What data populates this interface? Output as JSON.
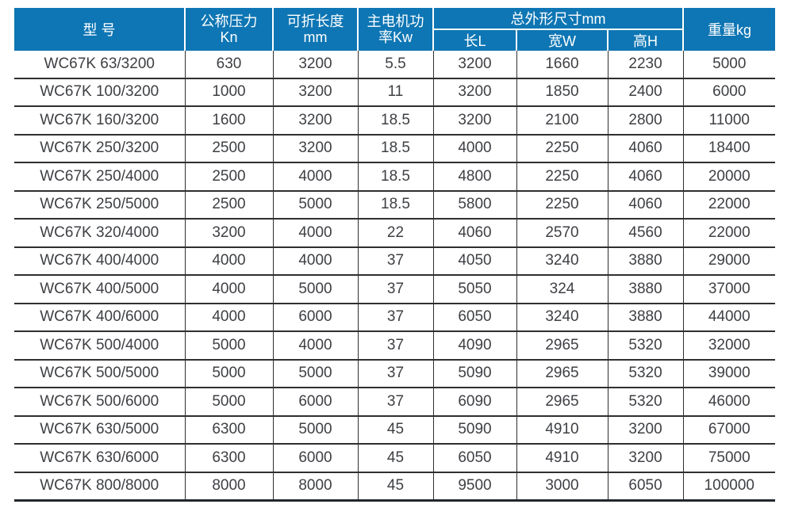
{
  "colors": {
    "header_bg": "#0e76b4",
    "header_text": "#ffffff",
    "body_text": "#3e4044",
    "grid_line": "#2f2f2f",
    "bottom_rule": "#22272c"
  },
  "table": {
    "header": {
      "model": "型 号",
      "pressure": [
        "公称压力",
        "Kn"
      ],
      "fold_length": [
        "可折长度",
        "mm"
      ],
      "motor_power": [
        "主电机功",
        "率Kw"
      ],
      "dimensions_group": "总外形尺寸mm",
      "dim_l": "长L",
      "dim_w": "宽W",
      "dim_h": "高H",
      "weight": "重量kg"
    },
    "rows": [
      [
        "WC67K 63/3200",
        "630",
        "3200",
        "5.5",
        "3200",
        "1660",
        "2230",
        "5000"
      ],
      [
        "WC67K 100/3200",
        "1000",
        "3200",
        "11",
        "3200",
        "1850",
        "2400",
        "6000"
      ],
      [
        "WC67K 160/3200",
        "1600",
        "3200",
        "18.5",
        "3200",
        "2100",
        "2800",
        "11000"
      ],
      [
        "WC67K 250/3200",
        "2500",
        "3200",
        "18.5",
        "4000",
        "2250",
        "4060",
        "18400"
      ],
      [
        "WC67K 250/4000",
        "2500",
        "4000",
        "18.5",
        "4800",
        "2250",
        "4060",
        "20000"
      ],
      [
        "WC67K 250/5000",
        "2500",
        "5000",
        "18.5",
        "5800",
        "2250",
        "4060",
        "22000"
      ],
      [
        "WC67K 320/4000",
        "3200",
        "4000",
        "22",
        "4060",
        "2570",
        "4560",
        "22000"
      ],
      [
        "WC67K 400/4000",
        "4000",
        "4000",
        "37",
        "4050",
        "3240",
        "3880",
        "29000"
      ],
      [
        "WC67K 400/5000",
        "4000",
        "5000",
        "37",
        "5050",
        "324",
        "3880",
        "37000"
      ],
      [
        "WC67K 400/6000",
        "4000",
        "6000",
        "37",
        "6050",
        "3240",
        "3880",
        "44000"
      ],
      [
        "WC67K 500/4000",
        "5000",
        "4000",
        "37",
        "4090",
        "2965",
        "5320",
        "32000"
      ],
      [
        "WC67K 500/5000",
        "5000",
        "5000",
        "37",
        "5090",
        "2965",
        "5320",
        "39000"
      ],
      [
        "WC67K 500/6000",
        "5000",
        "6000",
        "37",
        "6090",
        "2965",
        "5320",
        "46000"
      ],
      [
        "WC67K 630/5000",
        "6300",
        "5000",
        "45",
        "5090",
        "4910",
        "3200",
        "67000"
      ],
      [
        "WC67K 630/6000",
        "6300",
        "6000",
        "45",
        "6050",
        "4910",
        "3200",
        "75000"
      ],
      [
        "WC67K 800/8000",
        "8000",
        "8000",
        "45",
        "9500",
        "3000",
        "6050",
        "100000"
      ]
    ]
  }
}
